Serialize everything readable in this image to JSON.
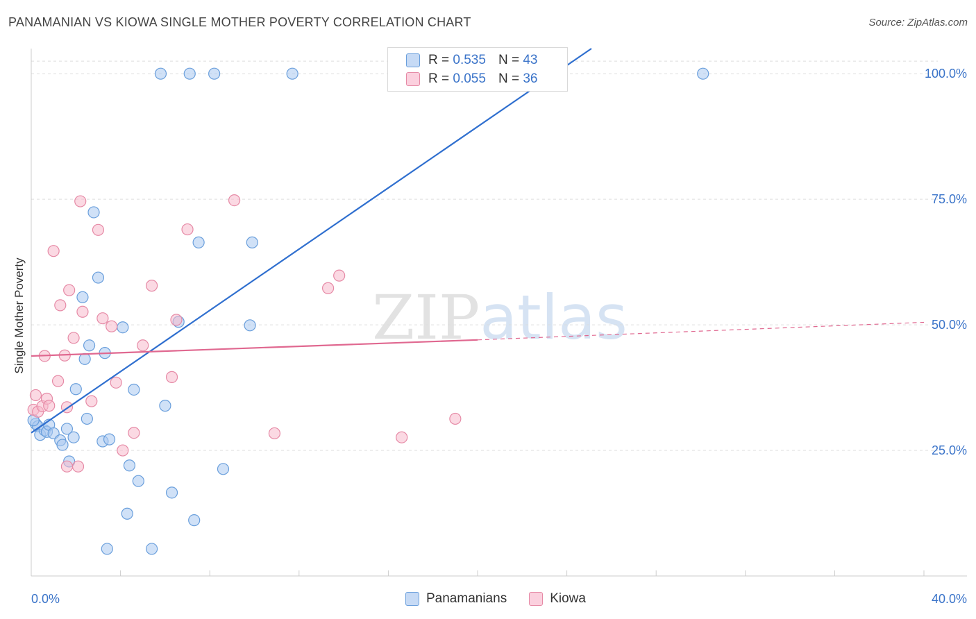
{
  "chart_data": {
    "type": "scatter",
    "title": "PANAMANIAN VS KIOWA SINGLE MOTHER POVERTY CORRELATION CHART",
    "source": "Source: ZipAtlas.com",
    "xlabel": "",
    "ylabel": "Single Mother Poverty",
    "xlim": [
      0,
      40
    ],
    "ylim": [
      0,
      105
    ],
    "x_tick_labels": [
      "0.0%",
      "40.0%"
    ],
    "y_ticks": [
      25,
      50,
      75,
      100
    ],
    "y_tick_labels": [
      "25.0%",
      "50.0%",
      "75.0%",
      "100.0%"
    ],
    "grid": true,
    "watermark": "ZIPatlas",
    "legend_entries": [
      {
        "name": "Panamanians",
        "color": "#aac9f0",
        "edge": "#6a9fdc",
        "line": "#2f6fcf",
        "r_label": "R =",
        "r": "0.535",
        "n_label": "N =",
        "n": "43"
      },
      {
        "name": "Kiowa",
        "color": "#f7b9cc",
        "edge": "#e68aa6",
        "line": "#e06890",
        "r_label": "R =",
        "r": "0.055",
        "n_label": "N =",
        "n": "36"
      }
    ],
    "series": [
      {
        "name": "Panamanians",
        "points": [
          [
            0.2,
            30.3
          ],
          [
            0.3,
            29.8
          ],
          [
            0.4,
            28.1
          ],
          [
            0.6,
            29.0
          ],
          [
            0.7,
            28.7
          ],
          [
            0.8,
            30.1
          ],
          [
            1.0,
            28.4
          ],
          [
            1.3,
            27.0
          ],
          [
            1.4,
            26.1
          ],
          [
            1.6,
            29.3
          ],
          [
            1.7,
            22.8
          ],
          [
            1.9,
            27.6
          ],
          [
            2.0,
            37.2
          ],
          [
            2.3,
            55.5
          ],
          [
            2.4,
            43.2
          ],
          [
            2.5,
            31.3
          ],
          [
            2.6,
            45.9
          ],
          [
            2.8,
            72.4
          ],
          [
            3.0,
            59.4
          ],
          [
            3.2,
            26.8
          ],
          [
            3.3,
            44.4
          ],
          [
            3.4,
            5.4
          ],
          [
            3.5,
            27.2
          ],
          [
            4.1,
            49.5
          ],
          [
            4.3,
            12.4
          ],
          [
            4.4,
            22.0
          ],
          [
            4.6,
            37.1
          ],
          [
            4.8,
            18.9
          ],
          [
            5.4,
            5.4
          ],
          [
            5.8,
            100.0
          ],
          [
            6.0,
            33.9
          ],
          [
            6.3,
            16.6
          ],
          [
            6.6,
            50.6
          ],
          [
            7.1,
            100.0
          ],
          [
            7.3,
            11.1
          ],
          [
            7.5,
            66.4
          ],
          [
            8.2,
            100.0
          ],
          [
            8.6,
            21.3
          ],
          [
            9.8,
            49.9
          ],
          [
            9.9,
            66.4
          ],
          [
            11.7,
            100.0
          ],
          [
            30.1,
            100.0
          ],
          [
            0.1,
            31.0
          ]
        ],
        "trend": {
          "x0": 0.0,
          "y0": 28.5,
          "x1": 25.1,
          "y1": 105.0
        }
      },
      {
        "name": "Kiowa",
        "points": [
          [
            0.1,
            33.1
          ],
          [
            0.2,
            36.0
          ],
          [
            0.3,
            32.7
          ],
          [
            0.5,
            33.8
          ],
          [
            0.6,
            43.8
          ],
          [
            0.7,
            35.3
          ],
          [
            0.8,
            33.9
          ],
          [
            1.0,
            64.7
          ],
          [
            1.2,
            38.8
          ],
          [
            1.3,
            53.9
          ],
          [
            1.5,
            43.9
          ],
          [
            1.6,
            21.8
          ],
          [
            1.6,
            33.6
          ],
          [
            1.7,
            56.9
          ],
          [
            1.9,
            47.4
          ],
          [
            2.1,
            21.8
          ],
          [
            2.2,
            74.6
          ],
          [
            2.3,
            52.6
          ],
          [
            2.7,
            34.8
          ],
          [
            3.0,
            68.9
          ],
          [
            3.2,
            51.3
          ],
          [
            3.6,
            49.7
          ],
          [
            3.8,
            38.5
          ],
          [
            4.1,
            25.0
          ],
          [
            4.6,
            28.5
          ],
          [
            5.0,
            45.9
          ],
          [
            5.4,
            57.8
          ],
          [
            6.3,
            39.6
          ],
          [
            6.5,
            51.0
          ],
          [
            7.0,
            69.0
          ],
          [
            9.1,
            74.8
          ],
          [
            10.9,
            28.4
          ],
          [
            13.3,
            57.3
          ],
          [
            13.8,
            59.8
          ],
          [
            16.6,
            27.6
          ],
          [
            19.0,
            31.3
          ]
        ],
        "trend": {
          "x0": 0.0,
          "y0": 43.8,
          "x1": 20.0,
          "y1": 47.0
        },
        "trend_dashed": {
          "x0": 20.0,
          "y0": 47.0,
          "x1": 40.0,
          "y1": 50.5
        }
      }
    ]
  }
}
